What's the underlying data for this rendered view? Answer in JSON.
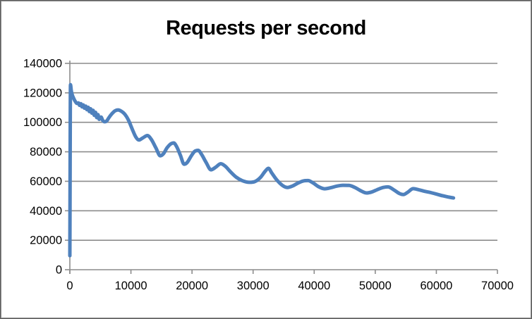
{
  "chart": {
    "title": "Requests per second"
  },
  "chart_data": {
    "type": "line",
    "title": "Requests per second",
    "xlabel": "",
    "ylabel": "",
    "xlim": [
      0,
      70000
    ],
    "ylim": [
      0,
      140000
    ],
    "x_ticks": [
      0,
      10000,
      20000,
      30000,
      40000,
      50000,
      60000,
      70000
    ],
    "y_ticks": [
      0,
      20000,
      40000,
      60000,
      80000,
      100000,
      120000,
      140000
    ],
    "grid": "horizontal-only",
    "legend": "none",
    "colors": {
      "line": "#4F81BD",
      "grid": "#8C8C8C",
      "axis": "#8C8C8C",
      "text": "#000000",
      "background": "#FFFFFF",
      "border": "#888888"
    },
    "series": [
      {
        "name": "Requests per second",
        "color": "#4F81BD",
        "points": [
          [
            0,
            9500
          ],
          [
            100,
            125500
          ],
          [
            250,
            121000
          ],
          [
            400,
            118500
          ],
          [
            600,
            116500
          ],
          [
            800,
            114800
          ],
          [
            1000,
            113500
          ],
          [
            1200,
            112800
          ],
          [
            1400,
            113200
          ],
          [
            1600,
            111500
          ],
          [
            1800,
            112600
          ],
          [
            2000,
            110500
          ],
          [
            2200,
            111800
          ],
          [
            2400,
            109600
          ],
          [
            2600,
            111000
          ],
          [
            2800,
            108600
          ],
          [
            3000,
            110200
          ],
          [
            3200,
            107300
          ],
          [
            3400,
            109200
          ],
          [
            3600,
            106200
          ],
          [
            3800,
            108200
          ],
          [
            4000,
            104800
          ],
          [
            4200,
            106800
          ],
          [
            4400,
            103200
          ],
          [
            4600,
            105200
          ],
          [
            4800,
            102000
          ],
          [
            5100,
            103600
          ],
          [
            5400,
            101200
          ],
          [
            5700,
            100400
          ],
          [
            6000,
            100800
          ],
          [
            6400,
            103200
          ],
          [
            6900,
            105900
          ],
          [
            7400,
            107800
          ],
          [
            7900,
            108400
          ],
          [
            8400,
            107600
          ],
          [
            9000,
            105500
          ],
          [
            9600,
            101500
          ],
          [
            10200,
            95500
          ],
          [
            10800,
            90000
          ],
          [
            11300,
            88000
          ],
          [
            11900,
            89300
          ],
          [
            12700,
            91000
          ],
          [
            13400,
            88000
          ],
          [
            14100,
            82500
          ],
          [
            14800,
            77300
          ],
          [
            15300,
            78600
          ],
          [
            15900,
            82600
          ],
          [
            16500,
            85300
          ],
          [
            17000,
            86000
          ],
          [
            17500,
            83400
          ],
          [
            18100,
            77600
          ],
          [
            18700,
            71600
          ],
          [
            19200,
            72700
          ],
          [
            19800,
            76700
          ],
          [
            20400,
            80200
          ],
          [
            21000,
            81000
          ],
          [
            21600,
            78000
          ],
          [
            22300,
            72800
          ],
          [
            23100,
            67800
          ],
          [
            23900,
            69600
          ],
          [
            24700,
            71900
          ],
          [
            25400,
            70400
          ],
          [
            26300,
            66400
          ],
          [
            27200,
            62900
          ],
          [
            28200,
            60500
          ],
          [
            29400,
            59300
          ],
          [
            30300,
            59800
          ],
          [
            31200,
            62600
          ],
          [
            32000,
            66900
          ],
          [
            32500,
            68800
          ],
          [
            33100,
            65300
          ],
          [
            33900,
            60800
          ],
          [
            34800,
            57200
          ],
          [
            35600,
            55800
          ],
          [
            36500,
            56900
          ],
          [
            37400,
            58900
          ],
          [
            38300,
            60300
          ],
          [
            39000,
            60500
          ],
          [
            39800,
            58900
          ],
          [
            40700,
            56400
          ],
          [
            41700,
            54900
          ],
          [
            42700,
            55600
          ],
          [
            43700,
            56700
          ],
          [
            44700,
            57300
          ],
          [
            45700,
            57200
          ],
          [
            46700,
            55700
          ],
          [
            47700,
            53400
          ],
          [
            48600,
            52100
          ],
          [
            49400,
            52700
          ],
          [
            50300,
            54300
          ],
          [
            51300,
            55800
          ],
          [
            52100,
            56200
          ],
          [
            53000,
            54300
          ],
          [
            54000,
            51600
          ],
          [
            54600,
            51000
          ],
          [
            55300,
            52500
          ],
          [
            56200,
            55000
          ],
          [
            57100,
            54300
          ],
          [
            58100,
            53200
          ],
          [
            59100,
            52300
          ],
          [
            60100,
            51200
          ],
          [
            61100,
            50100
          ],
          [
            62100,
            49200
          ],
          [
            62800,
            48700
          ]
        ]
      }
    ]
  }
}
